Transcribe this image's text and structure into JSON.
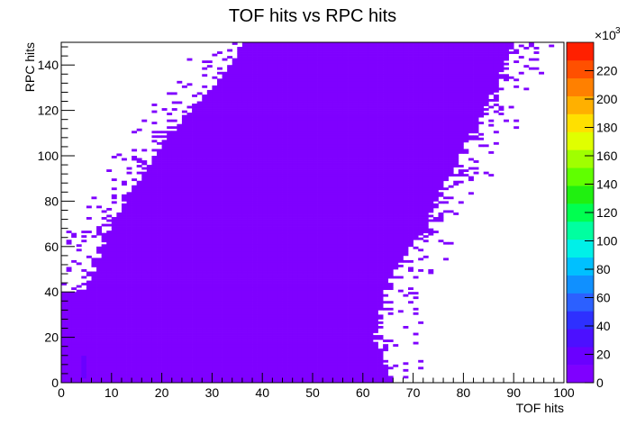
{
  "chart_data": {
    "type": "heatmap",
    "title": "TOF hits vs RPC hits",
    "xlabel": "TOF hits",
    "ylabel": "RPC hits",
    "xlim": [
      0,
      100
    ],
    "ylim": [
      0,
      150
    ],
    "x_ticks": [
      "0",
      "10",
      "20",
      "30",
      "40",
      "50",
      "60",
      "70",
      "80",
      "90",
      "100"
    ],
    "y_ticks": [
      "0",
      "20",
      "40",
      "60",
      "80",
      "100",
      "120",
      "140"
    ],
    "colorbar": {
      "range": [
        0,
        240
      ],
      "multiplier_label": "×10",
      "multiplier_exponent": "3",
      "ticks": [
        "0",
        "20",
        "40",
        "60",
        "80",
        "100",
        "120",
        "140",
        "160",
        "180",
        "200",
        "220"
      ],
      "colors": [
        "#7F00FF",
        "#6A00FF",
        "#4C10FF",
        "#2E30FF",
        "#2C60FF",
        "#1090FF",
        "#00C0FF",
        "#00F0E8",
        "#00FFA0",
        "#00FF50",
        "#20F010",
        "#60FF00",
        "#A0FF00",
        "#E0FF00",
        "#FFE000",
        "#FFB000",
        "#FF8000",
        "#FF5000",
        "#FF2000"
      ]
    },
    "band": {
      "lower_edge": [
        [
          0,
          0
        ],
        [
          0,
          40
        ],
        [
          5,
          40
        ],
        [
          10,
          70
        ],
        [
          20,
          105
        ],
        [
          30,
          130
        ],
        [
          37,
          150
        ]
      ],
      "upper_edge": [
        [
          66,
          0
        ],
        [
          62,
          20
        ],
        [
          65,
          45
        ],
        [
          72,
          70
        ],
        [
          78,
          95
        ],
        [
          85,
          125
        ],
        [
          90,
          150
        ]
      ],
      "peak": [
        [
          4,
          2
        ],
        [
          5,
          12
        ]
      ],
      "peak_level": 20
    }
  }
}
